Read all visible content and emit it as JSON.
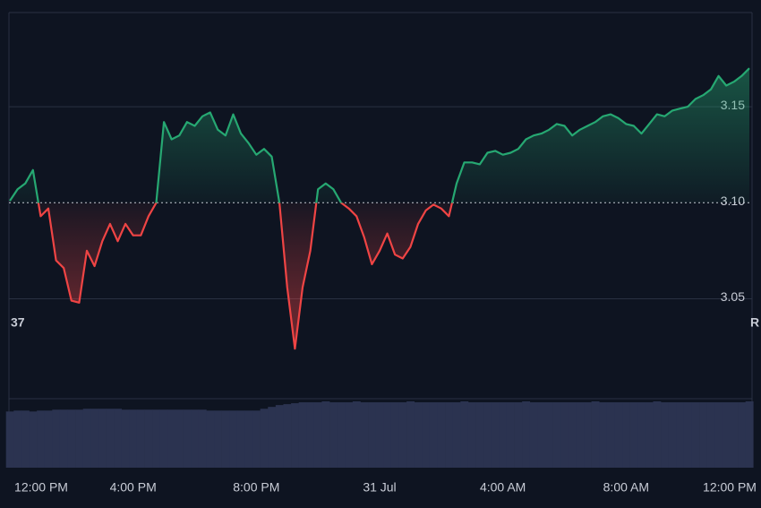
{
  "chart_data": {
    "type": "baseline",
    "categories": [
      "12:00 PM",
      null,
      null,
      null,
      null,
      null,
      null,
      null,
      null,
      null,
      null,
      null,
      null,
      null,
      null,
      null,
      "4:00 PM",
      null,
      null,
      null,
      null,
      null,
      null,
      null,
      null,
      null,
      null,
      null,
      null,
      null,
      null,
      null,
      "8:00 PM",
      null,
      null,
      null,
      null,
      null,
      null,
      null,
      null,
      null,
      null,
      null,
      null,
      null,
      null,
      null,
      "31 Jul",
      null,
      null,
      null,
      null,
      null,
      null,
      null,
      null,
      null,
      null,
      null,
      null,
      null,
      null,
      null,
      "4:00 AM",
      null,
      null,
      null,
      null,
      null,
      null,
      null,
      null,
      null,
      null,
      null,
      null,
      null,
      null,
      null,
      "8:00 AM",
      null,
      null,
      null,
      null,
      null,
      null,
      null,
      null,
      null,
      null,
      null,
      null,
      null,
      null,
      null,
      "12:00 PM"
    ],
    "values": [
      3.101,
      3.107,
      3.11,
      3.117,
      3.093,
      3.097,
      3.07,
      3.066,
      3.049,
      3.048,
      3.075,
      3.067,
      3.08,
      3.089,
      3.08,
      3.089,
      3.083,
      3.083,
      3.093,
      3.1,
      3.142,
      3.133,
      3.135,
      3.142,
      3.14,
      3.145,
      3.147,
      3.138,
      3.135,
      3.146,
      3.136,
      3.131,
      3.125,
      3.128,
      3.124,
      3.1,
      3.056,
      3.024,
      3.056,
      3.075,
      3.107,
      3.11,
      3.107,
      3.1,
      3.097,
      3.093,
      3.082,
      3.068,
      3.075,
      3.084,
      3.073,
      3.071,
      3.077,
      3.089,
      3.096,
      3.099,
      3.097,
      3.093,
      3.11,
      3.121,
      3.121,
      3.12,
      3.126,
      3.127,
      3.125,
      3.126,
      3.128,
      3.133,
      3.135,
      3.136,
      3.138,
      3.141,
      3.14,
      3.135,
      3.138,
      3.14,
      3.142,
      3.145,
      3.146,
      3.144,
      3.141,
      3.14,
      3.136,
      3.141,
      3.146,
      3.145,
      3.148,
      3.149,
      3.15,
      3.154,
      3.156,
      3.159,
      3.166,
      3.161,
      3.163,
      3.166,
      3.17
    ],
    "volume": [
      61,
      62,
      62,
      61,
      62,
      62,
      63,
      63,
      63,
      63,
      64,
      64,
      64,
      64,
      64,
      63,
      63,
      63,
      63,
      63,
      63,
      63,
      63,
      63,
      63,
      63,
      62,
      62,
      62,
      62,
      62,
      62,
      62,
      64,
      66,
      68,
      69,
      70,
      71,
      71,
      71,
      72,
      71,
      71,
      71,
      72,
      71,
      71,
      71,
      71,
      71,
      71,
      72,
      71,
      71,
      71,
      71,
      71,
      71,
      72,
      71,
      71,
      71,
      71,
      71,
      71,
      71,
      72,
      71,
      71,
      71,
      71,
      71,
      71,
      71,
      71,
      72,
      71,
      71,
      71,
      71,
      71,
      71,
      71,
      72,
      71,
      71,
      71,
      71,
      71,
      71,
      71,
      71,
      71,
      71,
      71,
      72
    ],
    "baseline": 3.1,
    "up_color": "#26a872",
    "down_color": "#ef4444",
    "volume_color": "#2b3350",
    "ylim": [
      2.998,
      3.199
    ],
    "yticks": [
      {
        "value": 3.05,
        "label": "3.05"
      },
      {
        "value": 3.1,
        "label": "3.10"
      },
      {
        "value": 3.15,
        "label": "3.15"
      }
    ],
    "grid": true,
    "left_fragment": "37",
    "right_fragment": "R"
  }
}
